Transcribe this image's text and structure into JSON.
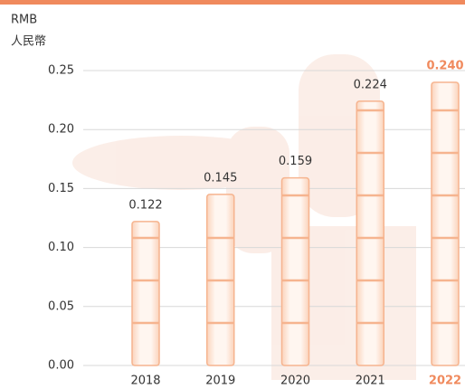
{
  "chart_data": {
    "type": "bar",
    "unit_label": "RMB",
    "unit_label_local": "人民幣",
    "categories": [
      "2018",
      "2019",
      "2020",
      "2021",
      "2022"
    ],
    "values": [
      0.122,
      0.145,
      0.159,
      0.224,
      0.24
    ],
    "value_labels": [
      "0.122",
      "0.145",
      "0.159",
      "0.224",
      "0.240"
    ],
    "colors": [
      "#f6b48f",
      "#f6b48f",
      "#f6b48f",
      "#f6b48f",
      "#f6b48f"
    ],
    "label_colors": [
      "#333333",
      "#333333",
      "#333333",
      "#333333",
      "#f08a5d"
    ],
    "ylim": [
      0,
      0.25
    ],
    "yticks": [
      {
        "value": 0,
        "label": "0.00"
      },
      0.05,
      {
        "value": 0.1,
        "label": "0.10"
      },
      0.15,
      {
        "value": 0.2,
        "label": "0.20"
      },
      0.25
    ],
    "grid": true
  }
}
